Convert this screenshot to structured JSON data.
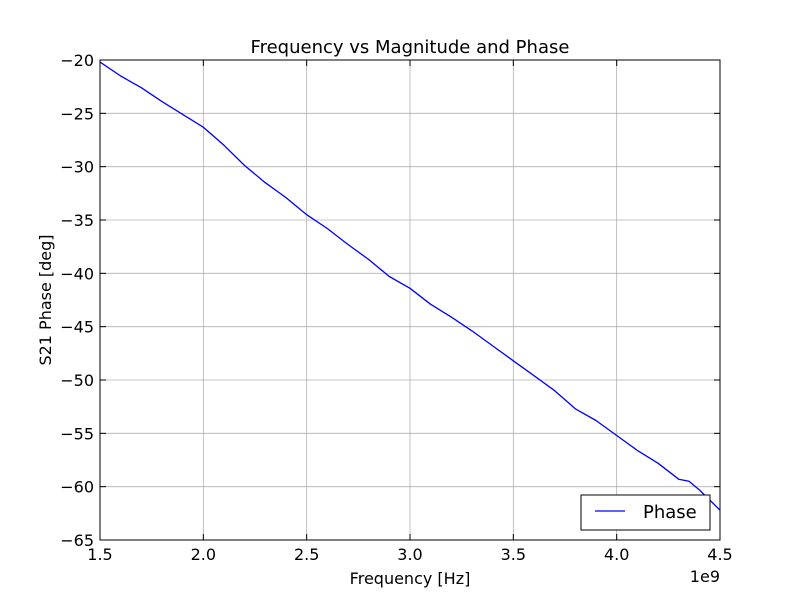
{
  "chart_data": {
    "type": "line",
    "title": "Frequency vs Magnitude and Phase",
    "xlabel": "Frequency [Hz]",
    "ylabel": "S21 Phase [deg]",
    "x_offset_label": "1e9",
    "xlim": [
      1.5,
      4.5
    ],
    "ylim": [
      -65,
      -20
    ],
    "grid": true,
    "legend_placement": "lower-right",
    "x_ticks": [
      1.5,
      2.0,
      2.5,
      3.0,
      3.5,
      4.0,
      4.5
    ],
    "x_tick_labels": [
      "1.5",
      "2.0",
      "2.5",
      "3.0",
      "3.5",
      "4.0",
      "4.5"
    ],
    "y_ticks": [
      -20,
      -25,
      -30,
      -35,
      -40,
      -45,
      -50,
      -55,
      -60,
      -65
    ],
    "y_tick_labels": [
      "−20",
      "−25",
      "−30",
      "−35",
      "−40",
      "−45",
      "−50",
      "−55",
      "−60",
      "−65"
    ],
    "series": [
      {
        "name": "Phase",
        "color": "#0000ff",
        "x": [
          1.5,
          1.6,
          1.7,
          1.8,
          1.9,
          1.95,
          2.0,
          2.1,
          2.2,
          2.3,
          2.4,
          2.5,
          2.6,
          2.7,
          2.8,
          2.9,
          3.0,
          3.1,
          3.2,
          3.3,
          3.4,
          3.5,
          3.6,
          3.7,
          3.8,
          3.9,
          4.0,
          4.1,
          4.2,
          4.3,
          4.35,
          4.4,
          4.5
        ],
        "y": [
          -20.2,
          -21.5,
          -22.6,
          -23.9,
          -25.1,
          -25.7,
          -26.3,
          -28.0,
          -29.9,
          -31.5,
          -32.9,
          -34.5,
          -35.8,
          -37.3,
          -38.7,
          -40.3,
          -41.4,
          -42.9,
          -44.1,
          -45.4,
          -46.8,
          -48.2,
          -49.6,
          -51.0,
          -52.7,
          -53.8,
          -55.2,
          -56.6,
          -57.8,
          -59.3,
          -59.5,
          -60.3,
          -62.2
        ]
      }
    ]
  }
}
